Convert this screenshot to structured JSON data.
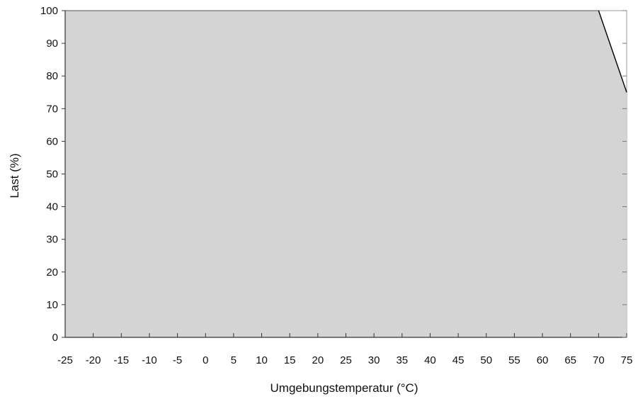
{
  "chart_data": {
    "type": "area",
    "title": "",
    "xlabel": "Umgebungstemperatur (°C)",
    "ylabel": "Last (%)",
    "xlim": [
      -25,
      75
    ],
    "ylim": [
      0,
      100
    ],
    "x_ticks": [
      -25,
      -20,
      -15,
      -10,
      -5,
      0,
      5,
      10,
      15,
      20,
      25,
      30,
      35,
      40,
      45,
      50,
      55,
      60,
      65,
      70,
      75
    ],
    "y_ticks": [
      0,
      10,
      20,
      30,
      40,
      50,
      60,
      70,
      80,
      90,
      100
    ],
    "series": [
      {
        "x": [
          -25,
          70,
          75
        ],
        "y": [
          100,
          100,
          75
        ]
      }
    ],
    "grid": false,
    "fill_color": "#d4d4d4",
    "line_color": "#000000"
  }
}
